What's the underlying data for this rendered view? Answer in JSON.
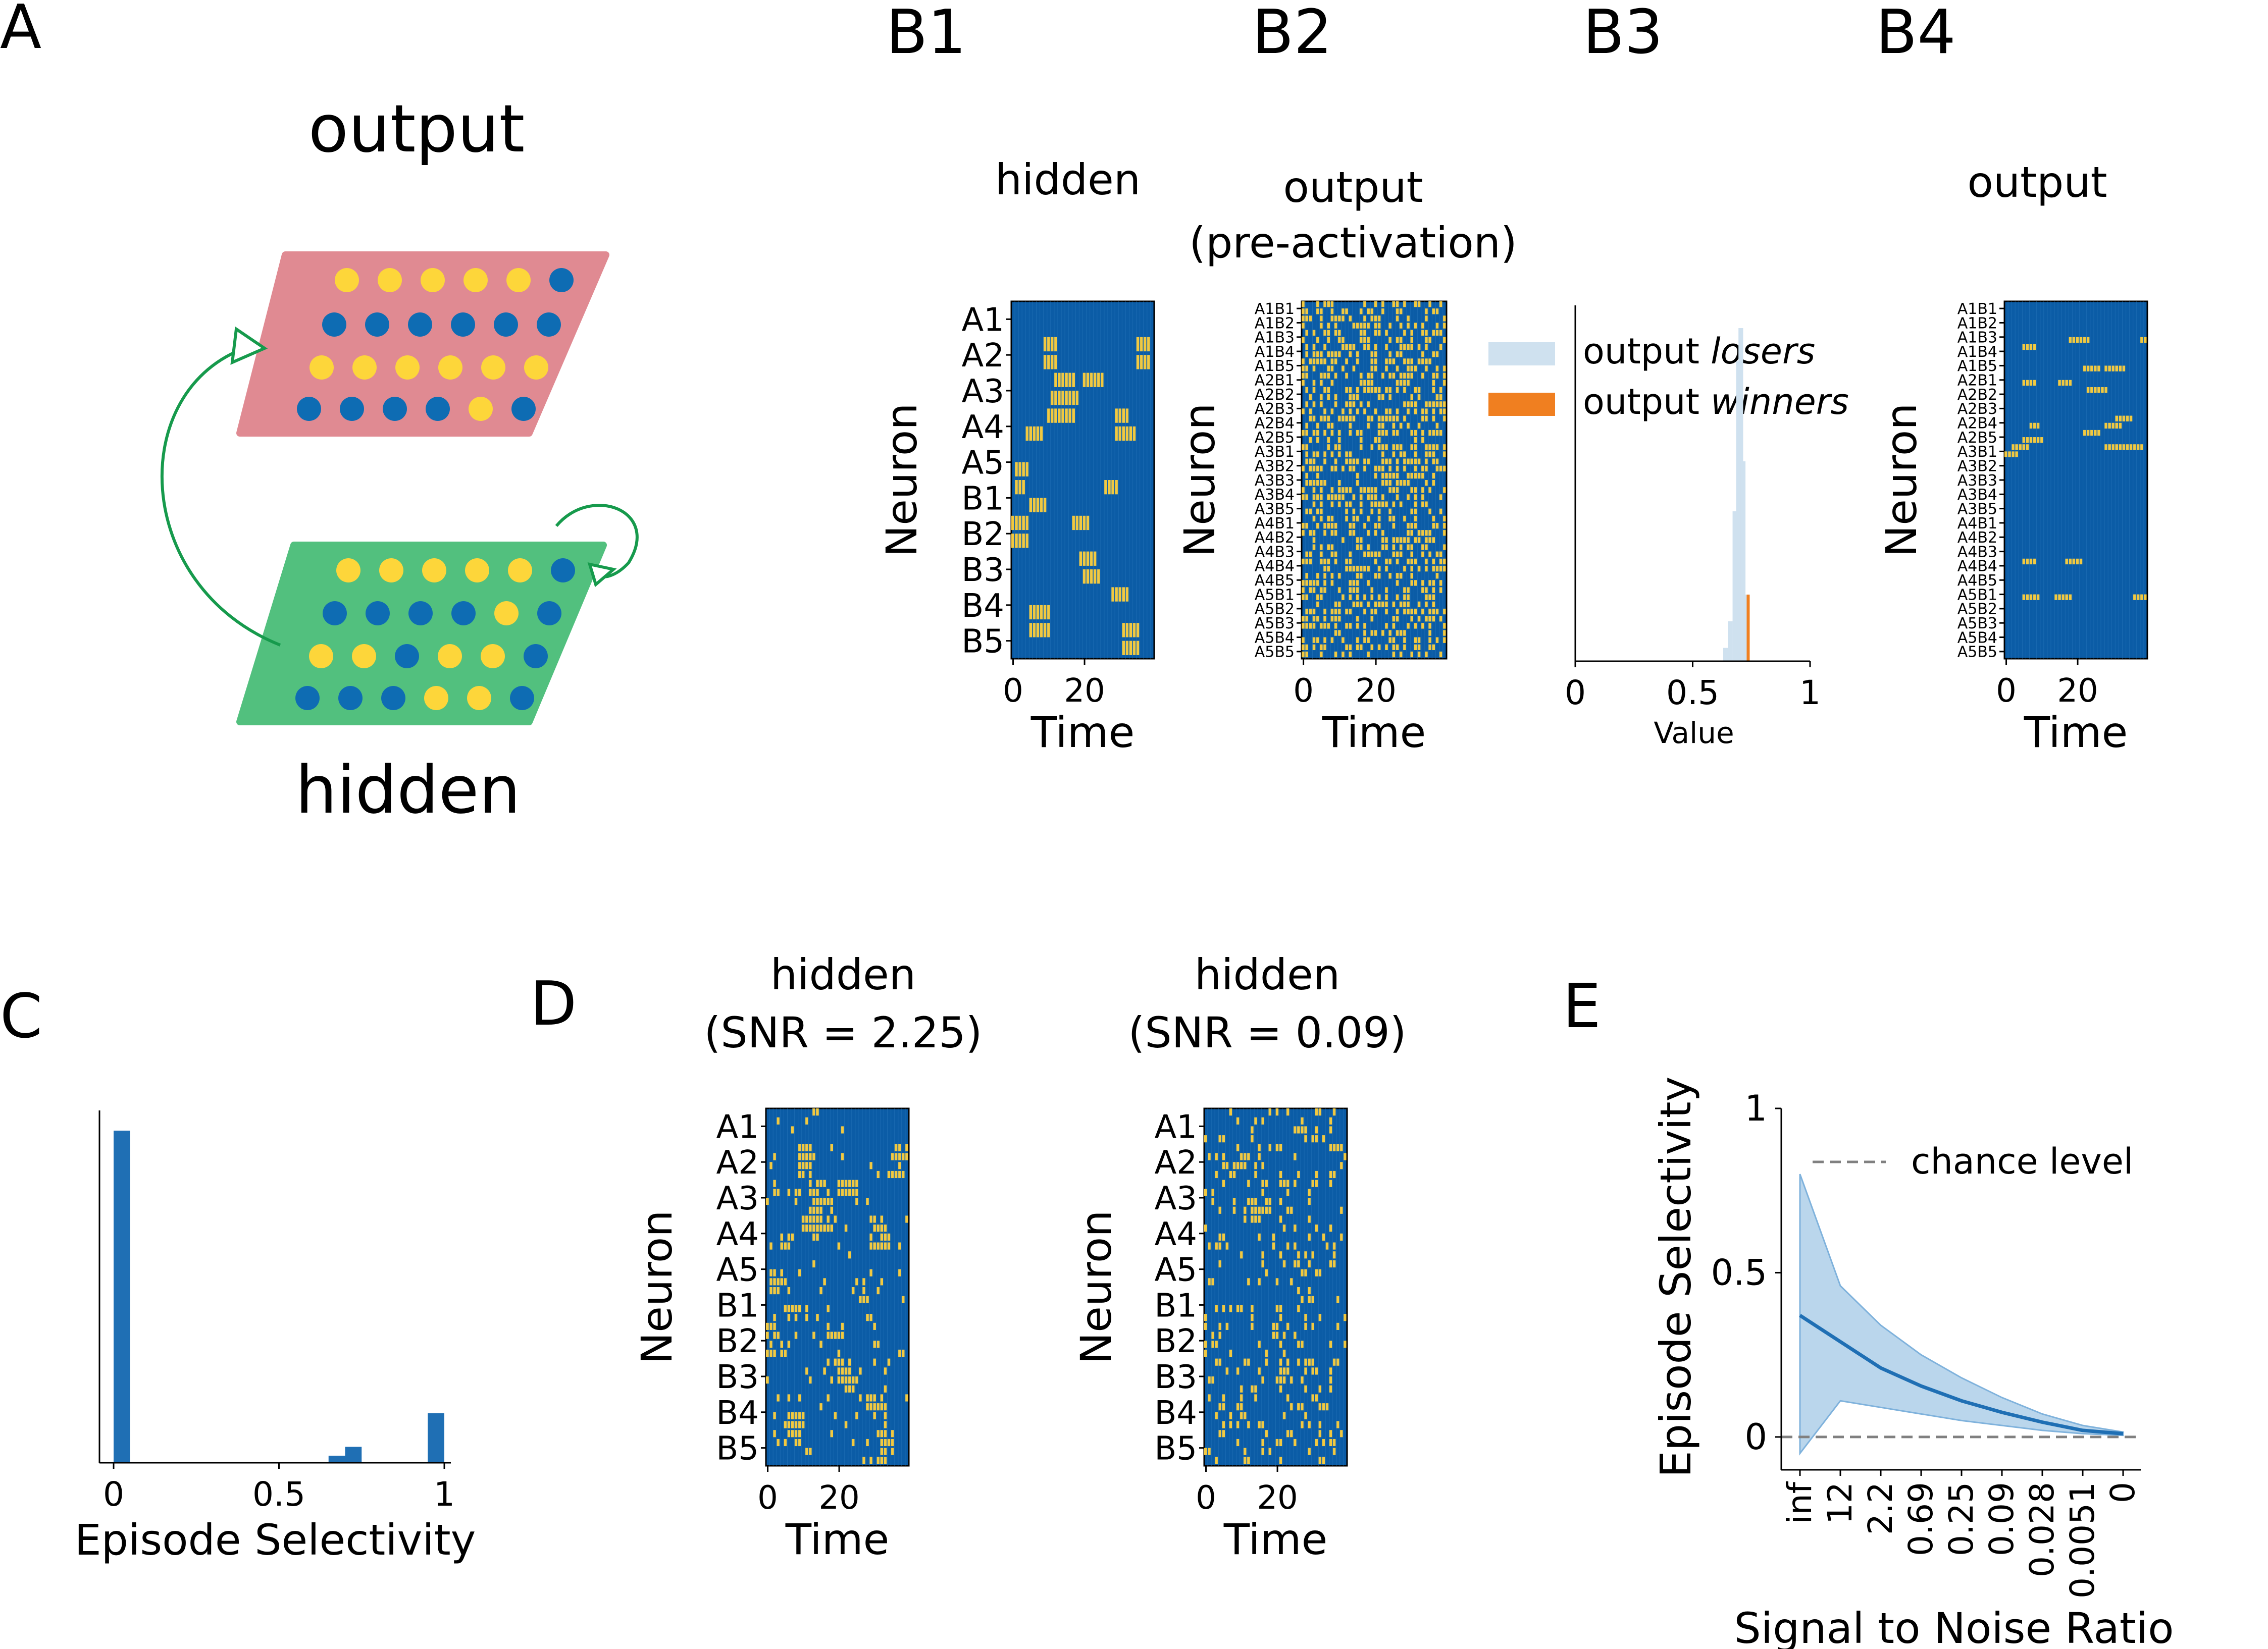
{
  "panel_labels": {
    "A": "A",
    "B1": "B1",
    "B2": "B2",
    "B3": "B3",
    "B4": "B4",
    "C": "C",
    "D": "D",
    "E": "E"
  },
  "schematic": {
    "output_label": "output",
    "hidden_label": "hidden",
    "colors": {
      "output_plane": "#e08a92",
      "hidden_plane": "#52c07e",
      "dot_yellow": "#fdd63a",
      "dot_blue": "#0e6cb3",
      "arrow": "#169a4c"
    }
  },
  "colors": {
    "raster_bg": "#0b5ca6",
    "raster_on": "#f2c940",
    "hist": "#1f6fb4",
    "losers": "#cfe1ef",
    "winners": "#f07f20",
    "band": "#9cc4e4",
    "line": "#1f6fb4",
    "chance": "#808080"
  },
  "neuron_labels_10": [
    "A1",
    "A2",
    "A3",
    "A4",
    "A5",
    "B1",
    "B2",
    "B3",
    "B4",
    "B5"
  ],
  "neuron_labels_25": [
    "A1B1",
    "A1B2",
    "A1B3",
    "A1B4",
    "A1B5",
    "A2B1",
    "A2B2",
    "A2B3",
    "A2B4",
    "A2B5",
    "A3B1",
    "A3B2",
    "A3B3",
    "A3B4",
    "A3B5",
    "A4B1",
    "A4B2",
    "A4B3",
    "A4B4",
    "A4B5",
    "A5B1",
    "A5B2",
    "A5B3",
    "A5B4",
    "A5B5"
  ],
  "raster_common": {
    "xlabel": "Time",
    "ylabel": "Neuron",
    "xticks": [
      "0",
      "20"
    ]
  },
  "B1": {
    "title": "hidden"
  },
  "B2": {
    "title_line1": "output",
    "title_line2": "(pre-activation)"
  },
  "B3": {
    "xlabel": "Value",
    "xticks": [
      "0",
      "0.5",
      "1"
    ],
    "legend_losers_prefix": "output ",
    "legend_losers_italic": "losers",
    "legend_winners_prefix": "output ",
    "legend_winners_italic": "winners"
  },
  "B4": {
    "title": "output"
  },
  "C": {
    "xlabel": "Episode Selectivity",
    "xticks": [
      "0",
      "0.5",
      "1"
    ]
  },
  "D": {
    "left_title_line1": "hidden",
    "left_title_line2": "(SNR = 2.25)",
    "right_title_line1": "hidden",
    "right_title_line2": "(SNR = 0.09)"
  },
  "E": {
    "xlabel": "Signal to Noise Ratio",
    "ylabel": "Episode Selectivity",
    "yticks": [
      "0",
      "0.5",
      "1"
    ],
    "legend": "chance level"
  },
  "chart_data": [
    {
      "panel": "C",
      "type": "bar",
      "xlabel": "Episode Selectivity",
      "xlim": [
        0,
        1
      ],
      "bins": [
        {
          "x": 0.025,
          "height": 0.94
        },
        {
          "x": 0.675,
          "height": 0.02
        },
        {
          "x": 0.725,
          "height": 0.045
        },
        {
          "x": 0.975,
          "height": 0.14
        }
      ]
    },
    {
      "panel": "B3",
      "type": "bar",
      "xlabel": "Value",
      "xlim": [
        0,
        1
      ],
      "series": [
        {
          "name": "output losers",
          "bins": [
            {
              "x": 0.64,
              "height": 0.04
            },
            {
              "x": 0.66,
              "height": 0.12
            },
            {
              "x": 0.68,
              "height": 0.45
            },
            {
              "x": 0.695,
              "height": 0.9
            },
            {
              "x": 0.705,
              "height": 1.0
            },
            {
              "x": 0.715,
              "height": 0.6
            },
            {
              "x": 0.725,
              "height": 0.2
            }
          ]
        },
        {
          "name": "output winners",
          "bins": [
            {
              "x": 0.73,
              "height": 0.2
            }
          ]
        }
      ]
    },
    {
      "panel": "E",
      "type": "line",
      "xlabel": "Signal to Noise Ratio",
      "ylabel": "Episode Selectivity",
      "ylim": [
        -0.1,
        1
      ],
      "categories": [
        "inf",
        "12",
        "2.2",
        "0.69",
        "0.25",
        "0.09",
        "0.028",
        "0.0051",
        "0"
      ],
      "mean": [
        0.37,
        0.29,
        0.21,
        0.155,
        0.11,
        0.075,
        0.045,
        0.02,
        0.01
      ],
      "upper": [
        0.8,
        0.46,
        0.34,
        0.25,
        0.18,
        0.12,
        0.07,
        0.035,
        0.015
      ],
      "lower": [
        -0.05,
        0.11,
        0.09,
        0.07,
        0.05,
        0.035,
        0.02,
        0.01,
        0.005
      ],
      "chance": 0
    }
  ]
}
